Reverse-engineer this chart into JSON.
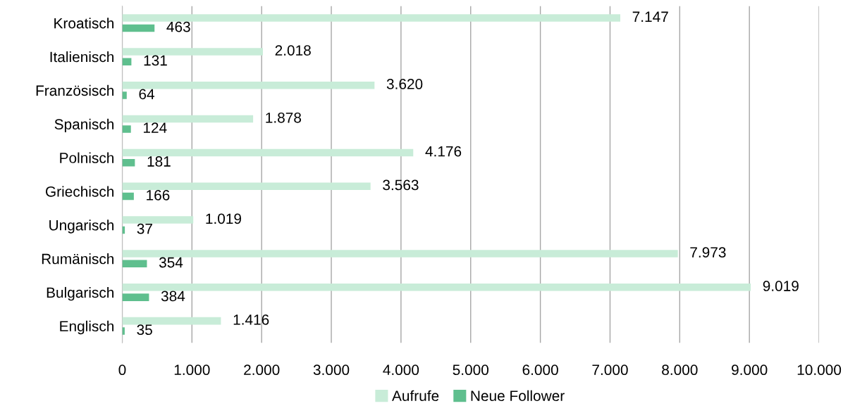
{
  "chart_data": {
    "type": "bar",
    "orientation": "horizontal",
    "categories": [
      "Kroatisch",
      "Italienisch",
      "Französisch",
      "Spanisch",
      "Polnisch",
      "Griechisch",
      "Ungarisch",
      "Rumänisch",
      "Bulgarisch",
      "Englisch"
    ],
    "series": [
      {
        "name": "Aufrufe",
        "color": "#c8ecd8",
        "values": [
          7147,
          2018,
          3620,
          1878,
          4176,
          3563,
          1019,
          7973,
          9019,
          1416
        ],
        "value_labels": [
          "7.147",
          "2.018",
          "3.620",
          "1.878",
          "4.176",
          "3.563",
          "1.019",
          "7.973",
          "9.019",
          "1.416"
        ]
      },
      {
        "name": "Neue Follower",
        "color": "#5fbf8e",
        "values": [
          463,
          131,
          64,
          124,
          181,
          166,
          37,
          354,
          384,
          35
        ],
        "value_labels": [
          "463",
          "131",
          "64",
          "124",
          "181",
          "166",
          "37",
          "354",
          "384",
          "35"
        ]
      }
    ],
    "xlim": [
      0,
      10000
    ],
    "xticks": [
      0,
      {
        "value": 1000,
        "label": "1.000"
      },
      {
        "value": 2000,
        "label": "2.000"
      },
      {
        "value": 3000,
        "label": "3.000"
      },
      {
        "value": 4000,
        "label": "4.000"
      },
      {
        "value": 5000,
        "label": "5.000"
      },
      {
        "value": 6000,
        "label": "6.000"
      },
      {
        "value": 7000,
        "label": "7.000"
      },
      {
        "value": 8000,
        "label": "8.000"
      },
      {
        "value": 9000,
        "label": "9.000"
      },
      {
        "value": 10000,
        "label": "10.000"
      }
    ],
    "grid": "x",
    "legend": "bottom"
  }
}
